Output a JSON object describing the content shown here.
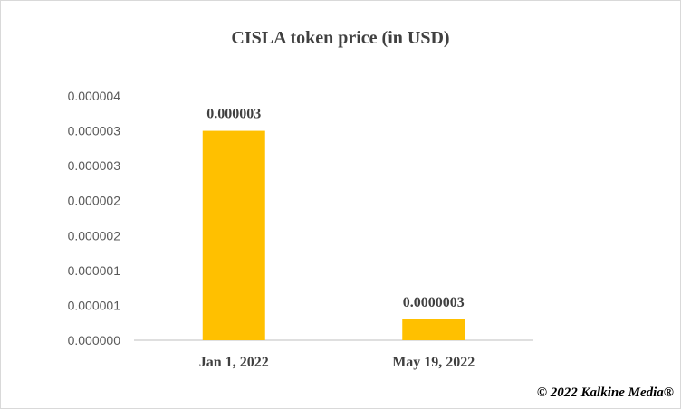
{
  "chart_data": {
    "type": "bar",
    "title": "CISLA token price (in USD)",
    "categories": [
      "Jan 1, 2022",
      "May 19, 2022"
    ],
    "values": [
      3e-06,
      3e-07
    ],
    "data_labels": [
      "0.000003",
      "0.0000003"
    ],
    "ylim": [
      0,
      3.5e-06
    ],
    "y_tick_labels": [
      "0.000000",
      "0.000001",
      "0.000001",
      "0.000002",
      "0.000002",
      "0.000003",
      "0.000003",
      "0.000004"
    ],
    "xlabel": "",
    "ylabel": "",
    "grid": false,
    "bar_color": "#ffc000"
  },
  "footer": {
    "copyright": "© 2022 Kalkine Media®"
  }
}
